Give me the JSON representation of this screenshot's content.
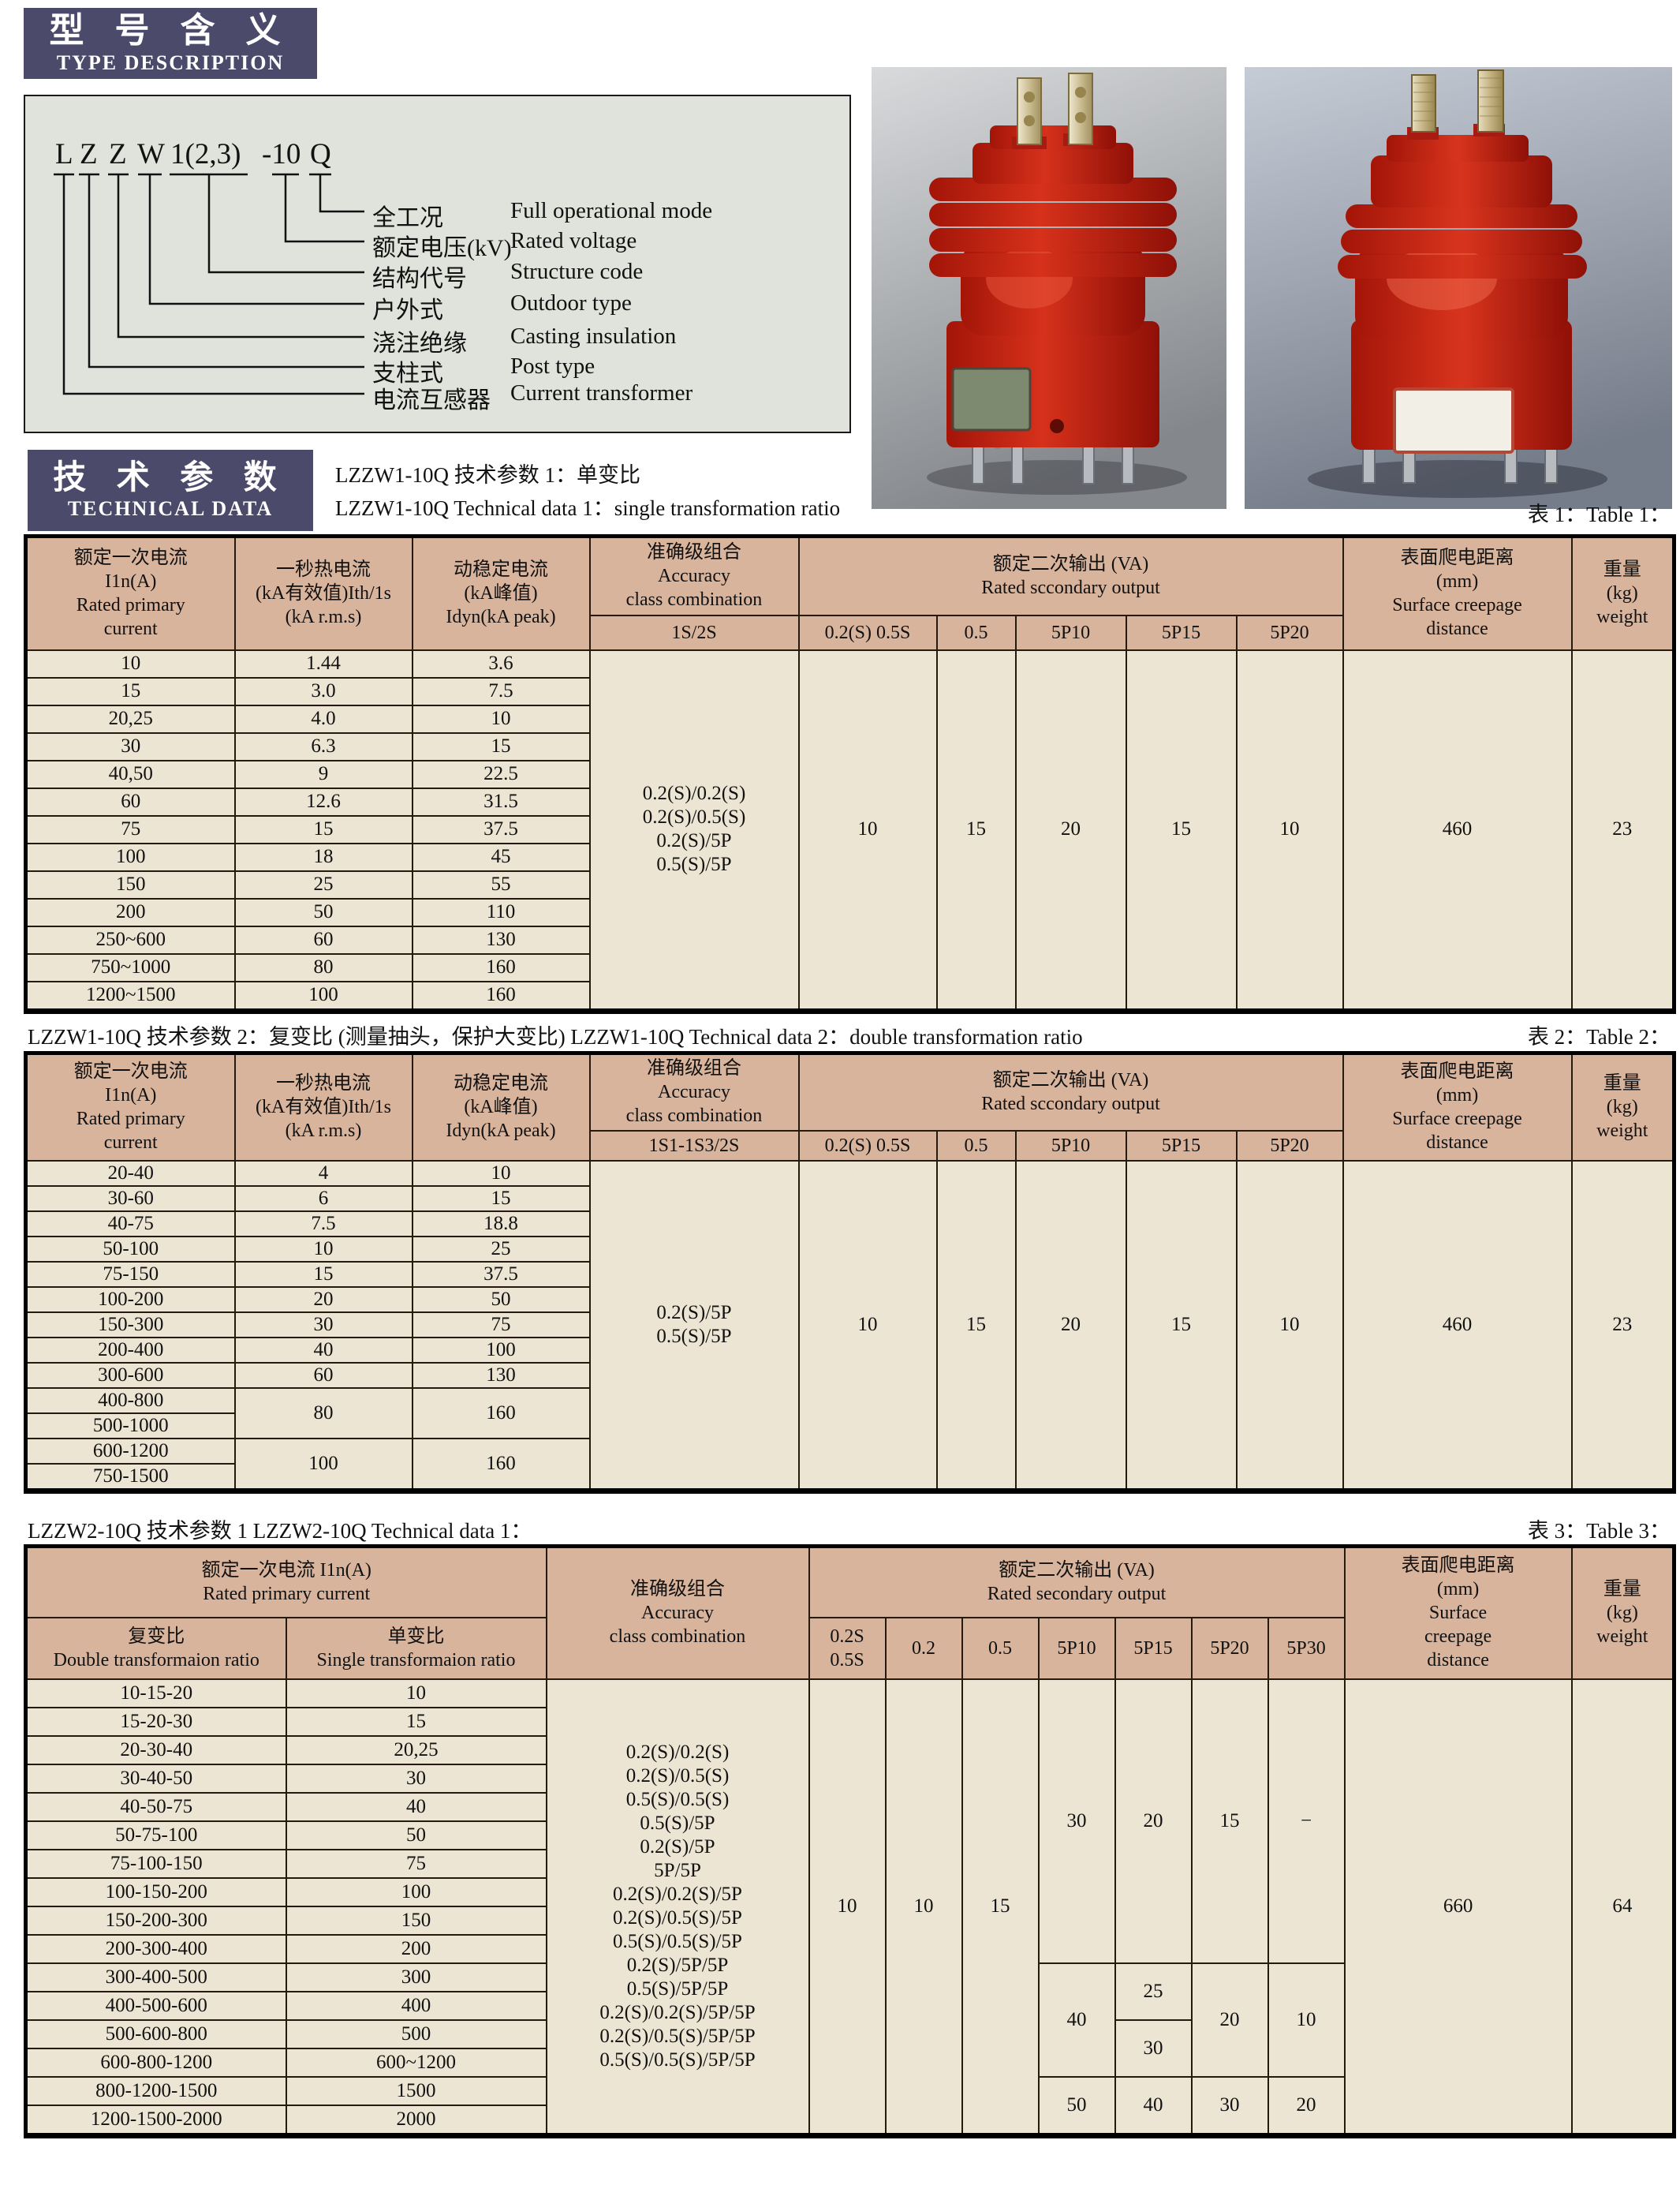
{
  "colors": {
    "section_header_bg": "#4c4a6a",
    "table_header_bg": "#d9b49c",
    "table_body_bg": "#ece5d3",
    "diagram_bg": "#e0e3dc",
    "product_red": "#c5281c"
  },
  "type_description": {
    "header_cn": "型 号 含 义",
    "header_en": "TYPE DESCRIPTION",
    "code_parts": [
      "L",
      "Z",
      "Z",
      "W",
      "1(2,3)",
      "-10",
      "Q"
    ],
    "legend": [
      {
        "cn": "全工况",
        "en": "Full operational mode"
      },
      {
        "cn": "额定电压(kV)",
        "en": "Rated voltage"
      },
      {
        "cn": "结构代号",
        "en": "Structure code"
      },
      {
        "cn": "户外式",
        "en": "Outdoor type"
      },
      {
        "cn": "浇注绝缘",
        "en": "Casting insulation"
      },
      {
        "cn": "支柱式",
        "en": "Post type"
      },
      {
        "cn": "电流互感器",
        "en": "Current transformer"
      }
    ]
  },
  "technical_data": {
    "header_cn": "技 术 参 数",
    "header_en": "TECHNICAL DATA"
  },
  "table1": {
    "title_cn": "LZZW1-10Q 技术参数 1：单变比",
    "title_en": "LZZW1-10Q Technical data 1：single transformation ratio",
    "ref": "表 1：Table 1：",
    "h_primary": "额定一次电流\nI1n(A)\nRated primary\ncurrent",
    "h_thermal": "一秒热电流\n(kA有效值)Ith/1s\n(kA r.m.s)",
    "h_dynamic": "动稳定电流\n(kA峰值)\nIdyn(kA peak)",
    "h_accuracy": "准确级组合\nAccuracy\nclass combination",
    "h_accuracy_sub": "1S/2S",
    "h_output": "额定二次输出 (VA)\nRated sccondary output",
    "h_output_subs": [
      "0.2(S) 0.5S",
      "0.5",
      "5P10",
      "5P15",
      "5P20"
    ],
    "h_creepage": "表面爬电距离\n(mm)\nSurface creepage\ndistance",
    "h_weight": "重量\n(kg)\nweight",
    "rows": [
      [
        "10",
        "1.44",
        "3.6"
      ],
      [
        "15",
        "3.0",
        "7.5"
      ],
      [
        "20,25",
        "4.0",
        "10"
      ],
      [
        "30",
        "6.3",
        "15"
      ],
      [
        "40,50",
        "9",
        "22.5"
      ],
      [
        "60",
        "12.6",
        "31.5"
      ],
      [
        "75",
        "15",
        "37.5"
      ],
      [
        "100",
        "18",
        "45"
      ],
      [
        "150",
        "25",
        "55"
      ],
      [
        "200",
        "50",
        "110"
      ],
      [
        "250~600",
        "60",
        "130"
      ],
      [
        "750~1000",
        "80",
        "160"
      ],
      [
        "1200~1500",
        "100",
        "160"
      ]
    ],
    "accuracy_combos": "0.2(S)/0.2(S)\n0.2(S)/0.5(S)\n0.2(S)/5P\n0.5(S)/5P",
    "outputs": [
      "10",
      "15",
      "20",
      "15",
      "10"
    ],
    "creepage": "460",
    "weight": "23"
  },
  "table2": {
    "title": "LZZW1-10Q 技术参数 2：复变比 (测量抽头，保护大变比)  LZZW1-10Q Technical data 2：double transformation ratio",
    "ref": "表 2：Table 2：",
    "h_primary": "额定一次电流\nI1n(A)\nRated primary\ncurrent",
    "h_thermal": "一秒热电流\n(kA有效值)Ith/1s\n(kA r.m.s)",
    "h_dynamic": "动稳定电流\n(kA峰值)\nIdyn(kA peak)",
    "h_accuracy": "准确级组合\nAccuracy\nclass combination",
    "h_accuracy_sub": "1S1-1S3/2S",
    "h_output": "额定二次输出 (VA)\nRated sccondary output",
    "h_output_subs": [
      "0.2(S) 0.5S",
      "0.5",
      "5P10",
      "5P15",
      "5P20"
    ],
    "h_creepage": "表面爬电距离\n(mm)\nSurface creepage\ndistance",
    "h_weight": "重量\n(kg)\nweight",
    "rows": [
      [
        "20-40",
        "4",
        "10"
      ],
      [
        "30-60",
        "6",
        "15"
      ],
      [
        "40-75",
        "7.5",
        "18.8"
      ],
      [
        "50-100",
        "10",
        "25"
      ],
      [
        "75-150",
        "15",
        "37.5"
      ],
      [
        "100-200",
        "20",
        "50"
      ],
      [
        "150-300",
        "30",
        "75"
      ],
      [
        "200-400",
        "40",
        "100"
      ],
      [
        "300-600",
        "60",
        "130"
      ],
      [
        "400-800",
        "80",
        "160"
      ],
      [
        "500-1000"
      ],
      [
        "600-1200",
        "100",
        "160"
      ],
      [
        "750-1500"
      ]
    ],
    "accuracy_combos": "0.2(S)/5P\n0.5(S)/5P",
    "outputs": [
      "10",
      "15",
      "20",
      "15",
      "10"
    ],
    "creepage": "460",
    "weight": "23"
  },
  "table3": {
    "title": "LZZW2-10Q 技术参数 1  LZZW2-10Q Technical data 1：",
    "ref": "表 3：Table 3：",
    "h_primary": "额定一次电流 I1n(A)\nRated primary current",
    "h_double": "复变比\nDouble transformaion ratio",
    "h_single": "单变比\nSingle transformaion ratio",
    "h_accuracy": "准确级组合\nAccuracy\nclass combination",
    "h_output": "额定二次输出 (VA)\nRated secondary output",
    "h_output_subs": [
      "0.2S\n0.5S",
      "0.2",
      "0.5",
      "5P10",
      "5P15",
      "5P20",
      "5P30"
    ],
    "h_creepage": "表面爬电距离\n(mm)\nSurface\ncreepage\ndistance",
    "h_weight": "重量\n(kg)\nweight",
    "rows": [
      [
        "10-15-20",
        "10"
      ],
      [
        "15-20-30",
        "15"
      ],
      [
        "20-30-40",
        "20,25"
      ],
      [
        "30-40-50",
        "30"
      ],
      [
        "40-50-75",
        "40"
      ],
      [
        "50-75-100",
        "50"
      ],
      [
        "75-100-150",
        "75"
      ],
      [
        "100-150-200",
        "100"
      ],
      [
        "150-200-300",
        "150"
      ],
      [
        "200-300-400",
        "200"
      ],
      [
        "300-400-500",
        "300"
      ],
      [
        "400-500-600",
        "400"
      ],
      [
        "500-600-800",
        "500"
      ],
      [
        "600-800-1200",
        "600~1200"
      ],
      [
        "800-1200-1500",
        "1500"
      ],
      [
        "1200-1500-2000",
        "2000"
      ]
    ],
    "accuracy_combos": "0.2(S)/0.2(S)\n0.2(S)/0.5(S)\n0.5(S)/0.5(S)\n0.5(S)/5P\n0.2(S)/5P\n5P/5P\n0.2(S)/0.2(S)/5P\n0.2(S)/0.5(S)/5P\n0.5(S)/0.5(S)/5P\n0.2(S)/5P/5P\n0.5(S)/5P/5P\n0.2(S)/0.2(S)/5P/5P\n0.2(S)/0.5(S)/5P/5P\n0.5(S)/0.5(S)/5P/5P",
    "out_02s05s": "10",
    "out_02": "10",
    "out_05": "15",
    "sec1": {
      "p10": "30",
      "p15": "20",
      "p20": "15",
      "p30": "−"
    },
    "sec2": {
      "p10": "40",
      "p15a": "25",
      "p15b": "30",
      "p20": "20",
      "p30": "10"
    },
    "sec3": {
      "p10": "50",
      "p15": "40",
      "p20": "30",
      "p30": "20"
    },
    "creepage": "660",
    "weight": "64"
  }
}
